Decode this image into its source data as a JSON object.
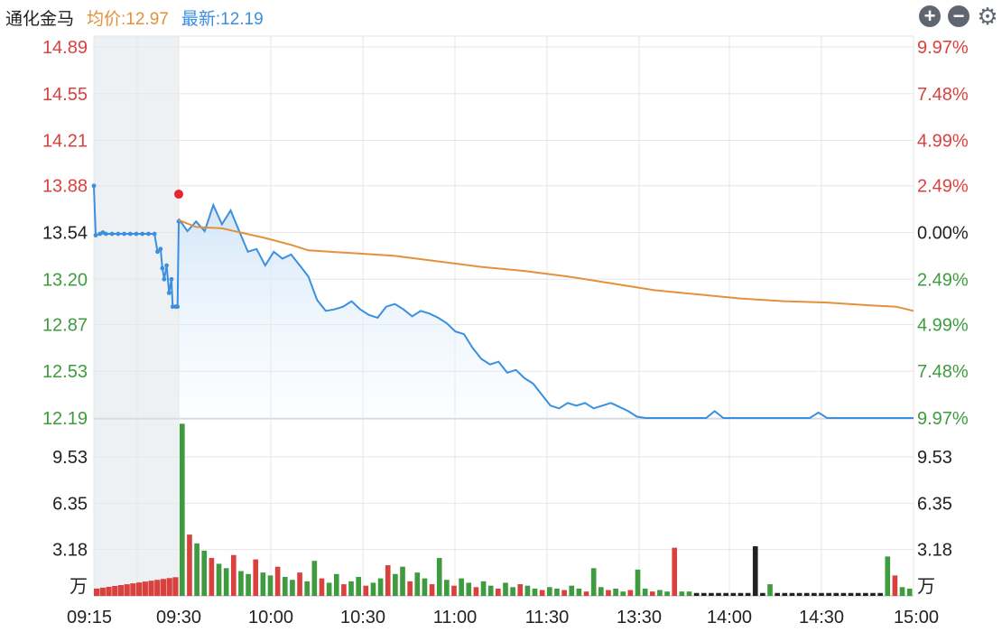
{
  "header": {
    "stock_name": "通化金马",
    "avg_label": "均价:12.97",
    "latest_label": "最新:12.19"
  },
  "toolbar": {
    "zoom_in_icon": "plus-circle-icon",
    "zoom_out_icon": "minus-circle-icon",
    "settings_icon": "gear-icon"
  },
  "colors": {
    "price_line": "#3b8fe0",
    "avg_line": "#e3913a",
    "up": "#d9413f",
    "down": "#3f9b3f",
    "neutral": "#222222",
    "grid": "#e6e6e6",
    "preopen_shade": "#eef1f4"
  },
  "chart_data": {
    "type": "line",
    "price_axis": {
      "ticks": [
        14.89,
        14.55,
        14.21,
        13.88,
        13.54,
        13.2,
        12.87,
        12.53,
        12.19
      ],
      "tick_labels": [
        "14.89",
        "14.55",
        "14.21",
        "13.88",
        "13.54",
        "13.20",
        "12.87",
        "12.53",
        "12.19"
      ],
      "pct_labels": [
        "9.97%",
        "7.48%",
        "4.99%",
        "2.49%",
        "0.00%",
        "2.49%",
        "4.99%",
        "7.48%",
        "9.97%"
      ],
      "ylim": [
        12.19,
        14.89
      ]
    },
    "volume_axis": {
      "tick_labels": [
        "9.53",
        "6.35",
        "3.18"
      ],
      "ticks": [
        9.53,
        6.35,
        3.18
      ],
      "unit": "万",
      "ylim": [
        0,
        12.19
      ]
    },
    "x_ticks": [
      "09:15",
      "09:30",
      "10:00",
      "10:30",
      "11:00",
      "11:30",
      "13:30",
      "14:00",
      "14:30",
      "15:00"
    ],
    "preopen_price": [
      [
        0,
        13.88
      ],
      [
        0.3,
        13.52
      ],
      [
        1,
        13.53
      ],
      [
        1.5,
        13.54
      ],
      [
        2,
        13.53
      ],
      [
        3,
        13.53
      ],
      [
        4,
        13.53
      ],
      [
        5,
        13.53
      ],
      [
        6,
        13.53
      ],
      [
        7,
        13.53
      ],
      [
        8,
        13.53
      ],
      [
        9,
        13.53
      ],
      [
        10,
        13.53
      ],
      [
        10.5,
        13.4
      ],
      [
        11,
        13.42
      ],
      [
        11.3,
        13.28
      ],
      [
        11.6,
        13.2
      ],
      [
        12,
        13.3
      ],
      [
        12.4,
        13.1
      ],
      [
        12.8,
        13.2
      ],
      [
        13,
        13.0
      ],
      [
        13.5,
        13.0
      ],
      [
        13.8,
        13.0
      ],
      [
        14,
        13.62
      ]
    ],
    "session_price": [
      [
        15,
        13.64
      ],
      [
        16,
        13.55
      ],
      [
        17,
        13.62
      ],
      [
        18,
        13.55
      ],
      [
        19,
        13.74
      ],
      [
        20,
        13.6
      ],
      [
        21,
        13.7
      ],
      [
        22,
        13.55
      ],
      [
        23,
        13.4
      ],
      [
        24,
        13.42
      ],
      [
        25,
        13.3
      ],
      [
        26,
        13.4
      ],
      [
        27,
        13.35
      ],
      [
        28,
        13.38
      ],
      [
        29,
        13.3
      ],
      [
        30,
        13.22
      ],
      [
        31,
        13.05
      ],
      [
        32,
        12.97
      ],
      [
        33,
        12.98
      ],
      [
        34,
        13.0
      ],
      [
        35,
        13.04
      ],
      [
        36,
        12.98
      ],
      [
        37,
        12.94
      ],
      [
        38,
        12.92
      ],
      [
        39,
        13.0
      ],
      [
        40,
        13.02
      ],
      [
        41,
        12.98
      ],
      [
        42,
        12.93
      ],
      [
        43,
        12.97
      ],
      [
        44,
        12.95
      ],
      [
        45,
        12.92
      ],
      [
        46,
        12.88
      ],
      [
        47,
        12.82
      ],
      [
        48,
        12.8
      ],
      [
        49,
        12.7
      ],
      [
        50,
        12.62
      ],
      [
        51,
        12.58
      ],
      [
        52,
        12.6
      ],
      [
        53,
        12.52
      ],
      [
        54,
        12.54
      ],
      [
        55,
        12.48
      ],
      [
        56,
        12.44
      ],
      [
        57,
        12.36
      ],
      [
        58,
        12.28
      ],
      [
        59,
        12.26
      ],
      [
        60,
        12.3
      ],
      [
        61,
        12.28
      ],
      [
        62,
        12.3
      ],
      [
        63,
        12.26
      ],
      [
        64,
        12.28
      ],
      [
        65,
        12.3
      ],
      [
        66,
        12.27
      ],
      [
        67,
        12.24
      ],
      [
        68,
        12.2
      ],
      [
        69,
        12.19
      ],
      [
        76,
        12.19
      ],
      [
        77,
        12.24
      ],
      [
        78,
        12.19
      ],
      [
        88,
        12.19
      ],
      [
        89,
        12.23
      ],
      [
        90,
        12.19
      ],
      [
        100,
        12.19
      ]
    ],
    "avg_price": [
      [
        15,
        13.63
      ],
      [
        17,
        13.58
      ],
      [
        20,
        13.57
      ],
      [
        25,
        13.5
      ],
      [
        28,
        13.45
      ],
      [
        30,
        13.41
      ],
      [
        35,
        13.39
      ],
      [
        40,
        13.37
      ],
      [
        45,
        13.33
      ],
      [
        50,
        13.29
      ],
      [
        55,
        13.26
      ],
      [
        60,
        13.22
      ],
      [
        65,
        13.17
      ],
      [
        70,
        13.12
      ],
      [
        75,
        13.09
      ],
      [
        80,
        13.06
      ],
      [
        85,
        13.04
      ],
      [
        90,
        13.03
      ],
      [
        95,
        13.01
      ],
      [
        98,
        13.0
      ],
      [
        100,
        12.97
      ]
    ],
    "session_open_marker": [
      15,
      13.74
    ],
    "volume": {
      "preopen_up_count": 14,
      "session_values": [
        11.8,
        4.2,
        3.6,
        3.1,
        2.6,
        2.2,
        1.9,
        2.8,
        1.7,
        1.5,
        2.5,
        1.6,
        1.4,
        2.0,
        1.3,
        1.1,
        1.6,
        1.0,
        2.4,
        1.2,
        0.9,
        1.5,
        0.8,
        1.0,
        1.3,
        0.7,
        0.9,
        1.2,
        2.1,
        1.5,
        2.0,
        1.0,
        1.6,
        1.2,
        0.8,
        2.6,
        1.1,
        0.7,
        1.2,
        0.9,
        0.6,
        1.0,
        0.7,
        0.5,
        0.9,
        0.6,
        0.8,
        0.7,
        0.5,
        0.4,
        0.6,
        0.5,
        0.4,
        0.7,
        0.5,
        0.3,
        1.9,
        0.6,
        0.4,
        0.5,
        0.3,
        0.4,
        1.8,
        0.5,
        0.3,
        0.4,
        0.3,
        3.3,
        0.3,
        0.3,
        0.2,
        0.2,
        0.2,
        0.2,
        0.2,
        0.2,
        0.2,
        0.2,
        3.4,
        0.2,
        0.8,
        0.2,
        0.2,
        0.2,
        0.2,
        0.2,
        0.2,
        0.2,
        0.2,
        0.2,
        0.2,
        0.2,
        0.2,
        0.2,
        0.2,
        0.2,
        2.7,
        1.4,
        0.6,
        0.5
      ]
    }
  }
}
